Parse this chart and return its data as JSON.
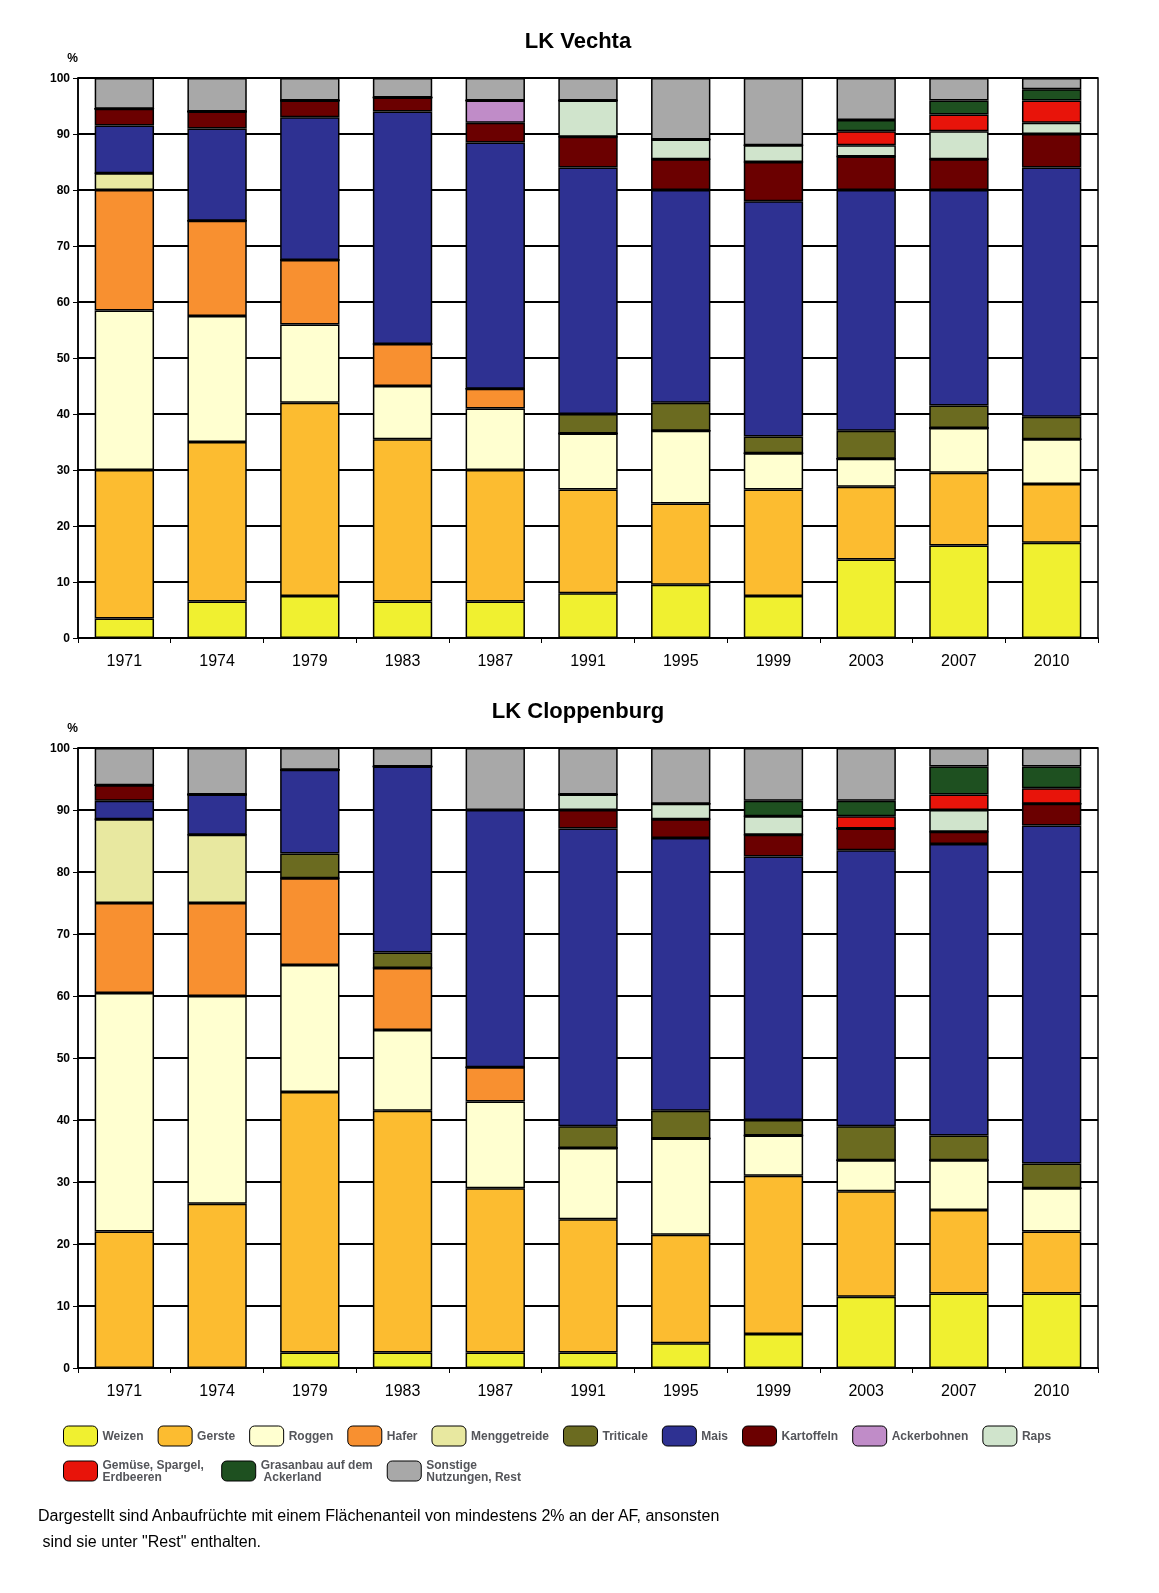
{
  "chart_data": [
    {
      "type": "bar",
      "title": "LK Vechta",
      "ylabel": "%",
      "stacked": true,
      "grid": "y",
      "legend": false,
      "ylim": [
        0,
        100
      ],
      "yticks": [
        0,
        10,
        20,
        30,
        40,
        50,
        60,
        70,
        80,
        90,
        100
      ],
      "categories": [
        "1971",
        "1974",
        "1979",
        "1983",
        "1987",
        "1991",
        "1995",
        "1999",
        "2003",
        "2007",
        "2010"
      ],
      "series": [
        {
          "color": "#f0f030",
          "values": [
            3.5,
            6.5,
            7.5,
            6.5,
            6.5,
            8,
            9.5,
            7.5,
            14,
            16.5,
            17
          ]
        },
        {
          "color": "#fcbc30",
          "values": [
            26.5,
            28.5,
            34.5,
            29,
            23.5,
            18.5,
            14.5,
            19,
            13,
            13,
            10.5
          ]
        },
        {
          "color": "#ffffd0",
          "values": [
            28.5,
            22.5,
            14,
            9.5,
            11,
            10,
            13,
            6.5,
            5,
            8,
            8
          ]
        },
        {
          "color": "#f89030",
          "values": [
            21.5,
            17,
            11.5,
            7.5,
            3.5,
            0,
            0,
            0,
            0,
            0,
            0
          ]
        },
        {
          "color": "#e8e8a0",
          "values": [
            3,
            0,
            0,
            0,
            0,
            0,
            0,
            0,
            0,
            0,
            0
          ]
        },
        {
          "color": "#6b6b20",
          "values": [
            0,
            0,
            0,
            0,
            0,
            3.5,
            5,
            3,
            5,
            4,
            4
          ]
        },
        {
          "color": "#2e3192",
          "values": [
            8.5,
            16.5,
            25.5,
            41.5,
            44,
            44,
            38,
            42,
            43,
            38.5,
            44.5
          ]
        },
        {
          "color": "#6b0000",
          "values": [
            3,
            3,
            3,
            2.5,
            3.5,
            5.5,
            5.5,
            7,
            6,
            5.5,
            6
          ]
        },
        {
          "color": "#c08cc8",
          "values": [
            0,
            0,
            0,
            0,
            4,
            0,
            0,
            0,
            0,
            0,
            0
          ]
        },
        {
          "color": "#d0e4cc",
          "values": [
            0,
            0,
            0,
            0,
            0,
            6.5,
            3.5,
            3,
            2,
            5,
            2
          ]
        },
        {
          "color": "#e8140a",
          "values": [
            0,
            0,
            0,
            0,
            0,
            0,
            0,
            0,
            2.5,
            3,
            4
          ]
        },
        {
          "color": "#1e5020",
          "values": [
            0,
            0,
            0,
            0,
            0,
            0,
            0,
            0,
            2,
            2.5,
            2
          ]
        },
        {
          "color": "#a8a8a8",
          "values": [
            5.5,
            6,
            4,
            3.5,
            4,
            4,
            11,
            12,
            7.5,
            4,
            2
          ]
        }
      ]
    },
    {
      "type": "bar",
      "title": "LK Cloppenburg",
      "ylabel": "%",
      "stacked": true,
      "grid": "y",
      "legend": "bottom",
      "ylim": [
        0,
        100
      ],
      "yticks": [
        0,
        10,
        20,
        30,
        40,
        50,
        60,
        70,
        80,
        90,
        100
      ],
      "categories": [
        "1971",
        "1974",
        "1979",
        "1983",
        "1987",
        "1991",
        "1995",
        "1999",
        "2003",
        "2007",
        "2010"
      ],
      "series": [
        {
          "name": "Weizen",
          "color": "#f0f030",
          "values": [
            0,
            0,
            2.5,
            2.5,
            2.5,
            2.5,
            4,
            5.5,
            11.5,
            12,
            12
          ]
        },
        {
          "name": "Gerste",
          "color": "#fcbc30",
          "values": [
            22,
            26.5,
            42,
            39,
            26.5,
            21.5,
            17.5,
            25.5,
            17,
            13.5,
            10
          ]
        },
        {
          "name": "Roggen",
          "color": "#ffffd0",
          "values": [
            38.5,
            33.5,
            20.5,
            13,
            14,
            11.5,
            15.5,
            6.5,
            5,
            8,
            7
          ]
        },
        {
          "name": "Hafer",
          "color": "#f89030",
          "values": [
            14.5,
            15,
            14,
            10,
            5.5,
            0,
            0,
            0,
            0,
            0,
            0
          ]
        },
        {
          "name": "Menggetreide",
          "color": "#e8e8a0",
          "values": [
            13.5,
            11,
            0,
            0,
            0,
            0,
            0,
            0,
            0,
            0,
            0
          ]
        },
        {
          "name": "Triticale",
          "color": "#6b6b20",
          "values": [
            0,
            0,
            4,
            2.5,
            0,
            3.5,
            4.5,
            2.5,
            5.5,
            4,
            4
          ]
        },
        {
          "name": "Mais",
          "color": "#2e3192",
          "values": [
            3,
            6.5,
            13.5,
            30,
            41.5,
            48,
            44,
            42.5,
            44.5,
            47,
            54.5
          ]
        },
        {
          "name": "Kartoffeln",
          "color": "#6b0000",
          "values": [
            2.5,
            0,
            0,
            0,
            0,
            3,
            3,
            3.5,
            3.5,
            2,
            3.5
          ]
        },
        {
          "name": "Ackerbohnen",
          "color": "#c08cc8",
          "values": [
            0,
            0,
            0,
            0,
            0,
            0,
            0,
            0,
            0,
            0,
            0
          ]
        },
        {
          "name": "Raps",
          "color": "#d0e4cc",
          "values": [
            0,
            0,
            0,
            0,
            0,
            2.5,
            2.5,
            3,
            0,
            3.5,
            0
          ]
        },
        {
          "name": "Gemüse, Spargel, Erdbeeren",
          "color": "#e8140a",
          "values": [
            0,
            0,
            0,
            0,
            0,
            0,
            0,
            0,
            2,
            2.5,
            2.5
          ]
        },
        {
          "name": "Grasanbau auf dem Ackerland",
          "color": "#1e5020",
          "values": [
            0,
            0,
            0,
            0,
            0,
            0,
            0,
            2.5,
            2.5,
            4.5,
            3.5
          ]
        },
        {
          "name": "Sonstige Nutzungen, Rest",
          "color": "#a8a8a8",
          "values": [
            6,
            7.5,
            3.5,
            3,
            10,
            7.5,
            9,
            8.5,
            8.5,
            3,
            3
          ]
        }
      ],
      "annotations": [
        "Dargestellt sind Anbaufrüchte mit einem Flächenanteil von mindestens 2% an der AF, ansonsten sind sie unter \"Rest\" enthalten."
      ]
    }
  ]
}
